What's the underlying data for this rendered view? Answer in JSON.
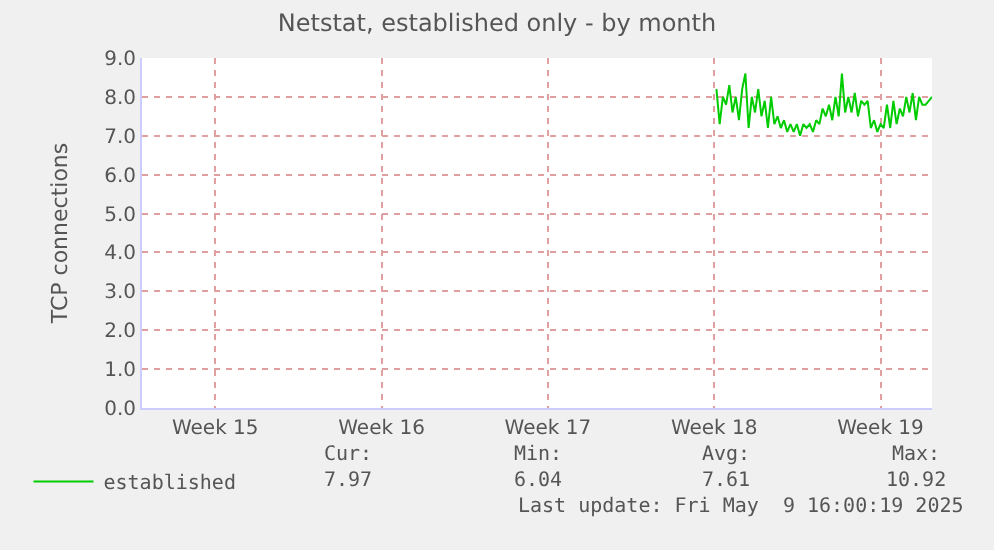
{
  "chart_data": {
    "type": "line",
    "title": "Netstat, established only - by month",
    "ylabel": "TCP connections",
    "x": [
      "2025-04-30T14:15",
      "2025-04-30T17:30",
      "2025-04-30T20:45",
      "2025-05-01T00:00",
      "2025-05-01T03:15",
      "2025-05-01T06:30",
      "2025-05-01T09:45",
      "2025-05-01T13:00",
      "2025-05-01T16:15",
      "2025-05-01T19:30",
      "2025-05-01T22:45",
      "2025-05-02T02:00",
      "2025-05-02T05:15",
      "2025-05-02T08:30",
      "2025-05-02T11:45",
      "2025-05-02T15:00",
      "2025-05-02T18:15",
      "2025-05-02T21:30",
      "2025-05-03T00:45",
      "2025-05-03T04:00",
      "2025-05-03T07:15",
      "2025-05-03T10:30",
      "2025-05-03T13:45",
      "2025-05-03T17:00",
      "2025-05-03T20:15",
      "2025-05-03T23:30",
      "2025-05-04T02:45",
      "2025-05-04T06:00",
      "2025-05-04T09:15",
      "2025-05-04T12:30",
      "2025-05-04T15:45",
      "2025-05-04T19:00",
      "2025-05-04T22:15",
      "2025-05-05T01:30",
      "2025-05-05T04:45",
      "2025-05-05T08:00",
      "2025-05-05T11:15",
      "2025-05-05T14:30",
      "2025-05-05T17:45",
      "2025-05-05T21:00",
      "2025-05-06T00:15",
      "2025-05-06T03:30",
      "2025-05-06T06:45",
      "2025-05-06T10:00",
      "2025-05-06T13:15",
      "2025-05-06T16:30",
      "2025-05-06T19:45",
      "2025-05-06T23:00",
      "2025-05-07T02:15",
      "2025-05-07T05:30",
      "2025-05-07T08:45",
      "2025-05-07T12:00",
      "2025-05-07T15:15",
      "2025-05-07T18:30",
      "2025-05-07T21:45",
      "2025-05-08T01:00",
      "2025-05-08T04:15",
      "2025-05-08T07:30",
      "2025-05-08T10:45",
      "2025-05-08T14:00",
      "2025-05-08T17:15",
      "2025-05-08T20:30",
      "2025-05-08T23:45",
      "2025-05-09T03:00",
      "2025-05-09T06:15",
      "2025-05-09T09:30",
      "2025-05-09T12:45",
      "2025-05-09T16:00"
    ],
    "series": [
      {
        "name": "established",
        "color": "#00cc00",
        "values": [
          8.2,
          7.3,
          8.0,
          7.8,
          8.3,
          7.6,
          8.0,
          7.4,
          8.2,
          8.6,
          7.2,
          8.0,
          7.6,
          8.2,
          7.5,
          7.9,
          7.2,
          8.0,
          7.3,
          7.5,
          7.2,
          7.4,
          7.1,
          7.3,
          7.1,
          7.3,
          7.0,
          7.3,
          7.2,
          7.3,
          7.1,
          7.4,
          7.3,
          7.7,
          7.5,
          7.8,
          7.4,
          8.0,
          7.5,
          8.6,
          7.6,
          8.0,
          7.6,
          8.1,
          7.5,
          7.9,
          7.8,
          7.9,
          7.2,
          7.4,
          7.1,
          7.3,
          7.2,
          7.8,
          7.2,
          7.9,
          7.3,
          7.7,
          7.5,
          8.0,
          7.6,
          8.1,
          7.4,
          8.0,
          7.8,
          7.8,
          7.9,
          8.0
        ]
      }
    ],
    "xlim": [
      "2025-04-06T10:00",
      "2025-05-09T16:00"
    ],
    "xticks": [
      {
        "value": "2025-04-09T12:00",
        "label": "Week 15"
      },
      {
        "value": "2025-04-16T12:00",
        "label": "Week 16"
      },
      {
        "value": "2025-04-23T12:00",
        "label": "Week 17"
      },
      {
        "value": "2025-04-30T12:00",
        "label": "Week 18"
      },
      {
        "value": "2025-05-07T12:00",
        "label": "Week 19"
      }
    ],
    "ylim": [
      0,
      9
    ],
    "yticks": [
      {
        "value": 0,
        "label": "0.0"
      },
      {
        "value": 1,
        "label": "1.0"
      },
      {
        "value": 2,
        "label": "2.0"
      },
      {
        "value": 3,
        "label": "3.0"
      },
      {
        "value": 4,
        "label": "4.0"
      },
      {
        "value": 5,
        "label": "5.0"
      },
      {
        "value": 6,
        "label": "6.0"
      },
      {
        "value": 7,
        "label": "7.0"
      },
      {
        "value": 8,
        "label": "8.0"
      },
      {
        "value": 9,
        "label": "9.0"
      }
    ],
    "grid": true,
    "legend": "bottom left",
    "annotations": [
      "Cur:",
      "7.97",
      "Min:",
      "6.04",
      "Avg:",
      "7.61",
      "Max:",
      "10.92",
      "Last update: Fri May  9 16:00:19 2025"
    ]
  }
}
